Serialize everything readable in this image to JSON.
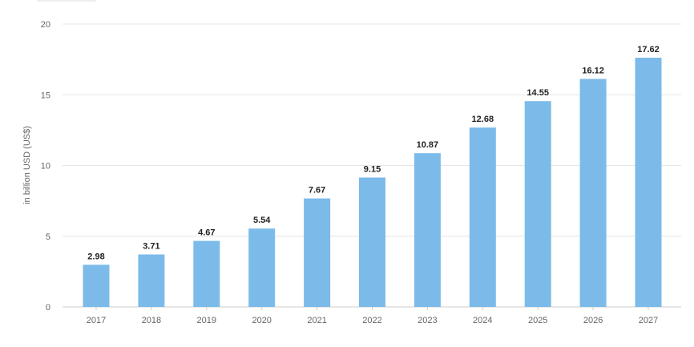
{
  "chart_data": {
    "type": "bar",
    "categories": [
      "2017",
      "2018",
      "2019",
      "2020",
      "2021",
      "2022",
      "2023",
      "2024",
      "2025",
      "2026",
      "2027"
    ],
    "values": [
      2.98,
      3.71,
      4.67,
      5.54,
      7.67,
      9.15,
      10.87,
      12.68,
      14.55,
      16.12,
      17.62
    ],
    "value_labels": [
      "2.98",
      "3.71",
      "4.67",
      "5.54",
      "7.67",
      "9.15",
      "10.87",
      "12.68",
      "14.55",
      "16.12",
      "17.62"
    ],
    "ylabel": "in billion USD (US$)",
    "ylim": [
      0,
      20
    ],
    "yticks": [
      0,
      5,
      10,
      15,
      20
    ],
    "ytick_labels": [
      "0",
      "5",
      "10",
      "15",
      "20"
    ],
    "grid": true,
    "bar_color": "#7cbbe9"
  }
}
